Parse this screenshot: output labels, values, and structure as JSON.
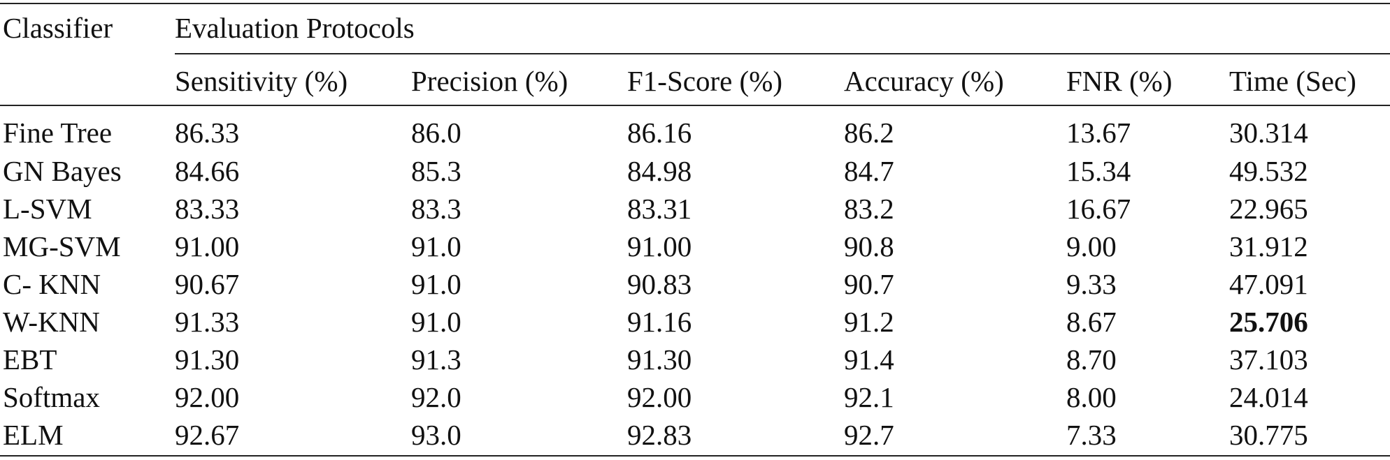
{
  "table": {
    "classifier_header": "Classifier",
    "group_header": "Evaluation Protocols",
    "columns": [
      "Sensitivity (%)",
      "Precision (%)",
      "F1-Score (%)",
      "Accuracy (%)",
      "FNR (%)",
      "Time (Sec)"
    ],
    "rows": [
      {
        "classifier": "Fine Tree",
        "values": [
          "86.33",
          "86.0",
          "86.16",
          "86.2",
          "13.67",
          "30.314"
        ]
      },
      {
        "classifier": "GN Bayes",
        "values": [
          "84.66",
          "85.3",
          "84.98",
          "84.7",
          "15.34",
          "49.532"
        ]
      },
      {
        "classifier": "L-SVM",
        "values": [
          "83.33",
          "83.3",
          "83.31",
          "83.2",
          "16.67",
          "22.965"
        ]
      },
      {
        "classifier": "MG-SVM",
        "values": [
          "91.00",
          "91.0",
          "91.00",
          "90.8",
          "9.00",
          "31.912"
        ]
      },
      {
        "classifier": "C- KNN",
        "values": [
          "90.67",
          "91.0",
          "90.83",
          "90.7",
          "9.33",
          "47.091"
        ]
      },
      {
        "classifier": "W-KNN",
        "values": [
          "91.33",
          "91.0",
          "91.16",
          "91.2",
          "8.67",
          "25.706"
        ]
      },
      {
        "classifier": "EBT",
        "values": [
          "91.30",
          "91.3",
          "91.30",
          "91.4",
          "8.70",
          "37.103"
        ]
      },
      {
        "classifier": "Softmax",
        "values": [
          "92.00",
          "92.0",
          "92.00",
          "92.1",
          "8.00",
          "24.014"
        ]
      },
      {
        "classifier": "ELM",
        "values": [
          "92.67",
          "93.0",
          "92.83",
          "92.7",
          "7.33",
          "30.775"
        ]
      }
    ]
  }
}
